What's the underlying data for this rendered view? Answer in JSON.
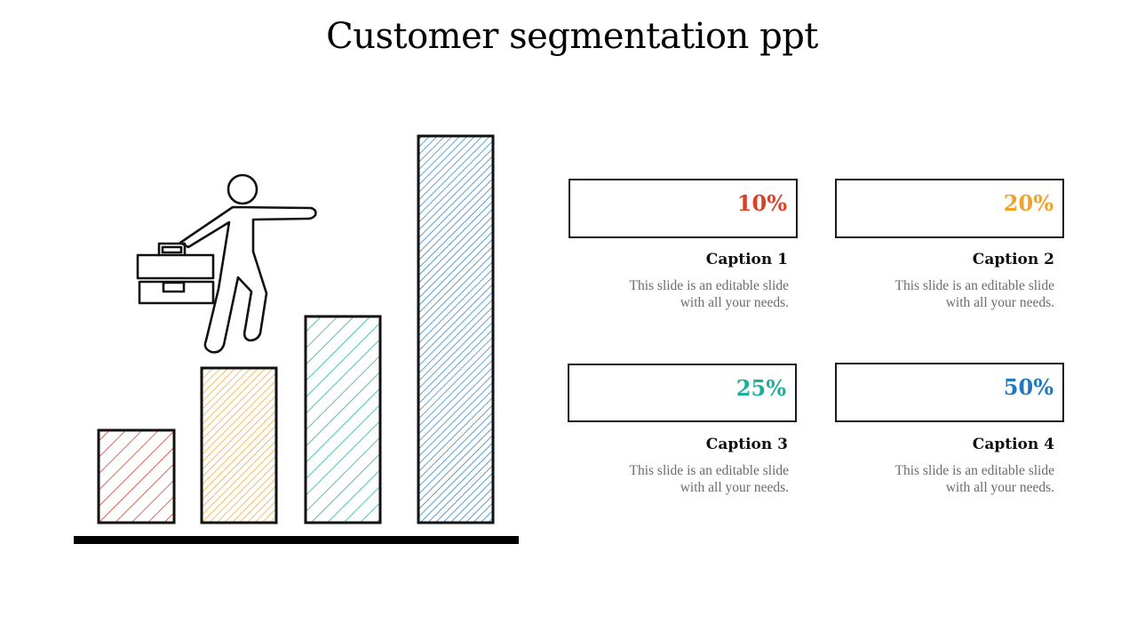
{
  "slide": {
    "title": "Customer segmentation ppt"
  },
  "illustration": {
    "figure_icon": "businessman-with-briefcase-icon",
    "bar_colors": [
      "#d9412b",
      "#f0a32a",
      "#27b3a0",
      "#1f78c1"
    ]
  },
  "cards": [
    {
      "value": "10%",
      "color": "#d9412b",
      "caption": "Caption 1",
      "desc_line1": "This slide is an editable slide",
      "desc_line2": "with all your needs."
    },
    {
      "value": "20%",
      "color": "#f0a32a",
      "caption": "Caption 2",
      "desc_line1": "This slide is an editable slide",
      "desc_line2": "with all your needs."
    },
    {
      "value": "25%",
      "color": "#1fae9b",
      "caption": "Caption 3",
      "desc_line1": "This slide is an editable slide",
      "desc_line2": "with all your needs."
    },
    {
      "value": "50%",
      "color": "#1f78c1",
      "caption": "Caption 4",
      "desc_line1": "This slide is an editable slide",
      "desc_line2": "with all your needs."
    }
  ]
}
